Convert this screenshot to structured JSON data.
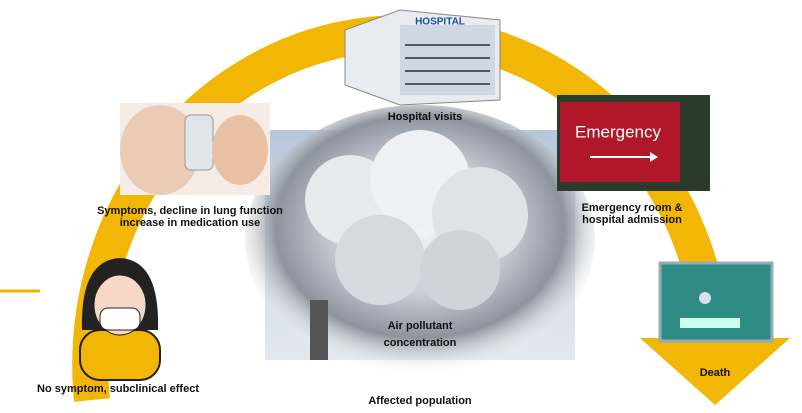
{
  "hospital": {
    "sign": "HOSPITAL",
    "label": "Hospital visits"
  },
  "symptoms": {
    "lines": [
      "Symptoms, decline in lung function",
      "increase in medication use"
    ]
  },
  "emergency": {
    "sign": "Emergency",
    "lines": [
      "Emergency room &",
      "hospital admission"
    ]
  },
  "no_symptom": {
    "label": "No symptom, subclinical effect"
  },
  "pollutant": {
    "lines": [
      "Air pollutant",
      "concentration"
    ]
  },
  "death": {
    "label": "Death"
  },
  "footer": {
    "label": "Affected population"
  }
}
